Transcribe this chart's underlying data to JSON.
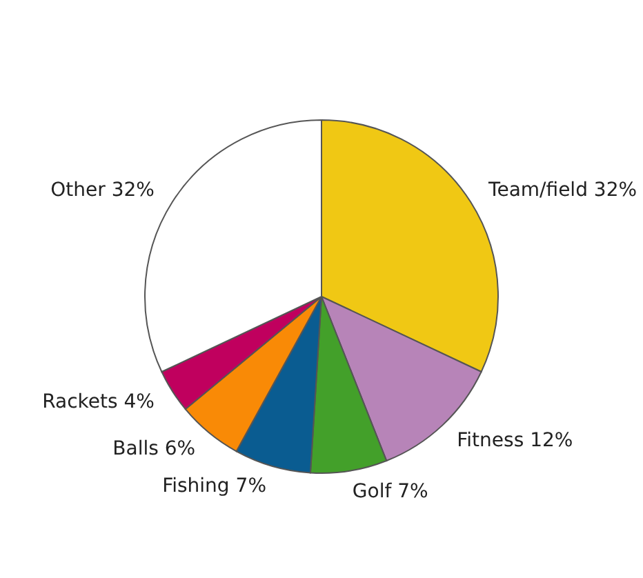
{
  "chart_data": {
    "type": "pie",
    "categories": [
      "Team/field",
      "Fitness",
      "Golf",
      "Fishing",
      "Balls",
      "Rackets",
      "Other"
    ],
    "values": [
      32,
      12,
      7,
      7,
      6,
      4,
      32
    ],
    "colors": [
      "#f0c814",
      "#b784b8",
      "#43a02a",
      "#0a5c91",
      "#f98a06",
      "#c0005e",
      "#ffffff"
    ],
    "value_labels": [
      "32%",
      "12%",
      "7%",
      "7%",
      "6%",
      "4%",
      "32%"
    ]
  }
}
